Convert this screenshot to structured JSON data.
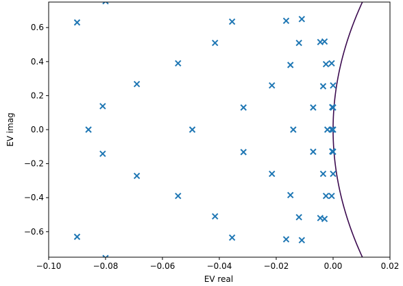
{
  "chart_data": {
    "type": "scatter",
    "title": "",
    "xlabel": "EV real",
    "ylabel": "EV imag",
    "xlim": [
      -0.1,
      0.02
    ],
    "ylim": [
      -0.75,
      0.75
    ],
    "grid": false,
    "legend": "none",
    "xticks": [
      {
        "value": -0.1,
        "label": "−0.10"
      },
      {
        "value": -0.08,
        "label": "−0.08"
      },
      {
        "value": -0.06,
        "label": "−0.06"
      },
      {
        "value": -0.04,
        "label": "−0.04"
      },
      {
        "value": -0.02,
        "label": "−0.02"
      },
      {
        "value": 0.0,
        "label": "0.00"
      },
      {
        "value": 0.02,
        "label": "0.02"
      }
    ],
    "yticks": [
      {
        "value": 0.6,
        "label": "0.6"
      },
      {
        "value": 0.4,
        "label": "0.4"
      },
      {
        "value": 0.2,
        "label": "0.2"
      },
      {
        "value": 0.0,
        "label": "0.0"
      },
      {
        "value": -0.2,
        "label": "−0.2"
      },
      {
        "value": -0.4,
        "label": "−0.4"
      },
      {
        "value": -0.6,
        "label": "−0.6"
      }
    ],
    "marker_color": "#1f77b4",
    "curve_color": "#3b0a4f",
    "points": [
      [
        -0.08,
        0.755
      ],
      [
        -0.08,
        -0.755
      ],
      [
        -0.09,
        0.63
      ],
      [
        -0.09,
        -0.63
      ],
      [
        -0.0355,
        0.635
      ],
      [
        -0.0355,
        -0.635
      ],
      [
        -0.0165,
        0.64
      ],
      [
        -0.0165,
        -0.645
      ],
      [
        -0.011,
        0.65
      ],
      [
        -0.011,
        -0.65
      ],
      [
        -0.0415,
        0.51
      ],
      [
        -0.0415,
        -0.51
      ],
      [
        -0.012,
        0.51
      ],
      [
        -0.012,
        -0.515
      ],
      [
        -0.0045,
        0.515
      ],
      [
        -0.0045,
        -0.52
      ],
      [
        -0.003,
        0.518
      ],
      [
        -0.003,
        -0.525
      ],
      [
        -0.0545,
        0.39
      ],
      [
        -0.0545,
        -0.39
      ],
      [
        -0.015,
        0.38
      ],
      [
        -0.015,
        -0.385
      ],
      [
        -0.0025,
        0.385
      ],
      [
        -0.0025,
        -0.39
      ],
      [
        -0.0005,
        0.39
      ],
      [
        -0.0005,
        -0.39
      ],
      [
        -0.069,
        0.268
      ],
      [
        -0.069,
        -0.272
      ],
      [
        -0.0215,
        0.26
      ],
      [
        -0.0215,
        -0.26
      ],
      [
        -0.0035,
        0.255
      ],
      [
        -0.0035,
        -0.26
      ],
      [
        0.0,
        0.26
      ],
      [
        0.0,
        -0.26
      ],
      [
        -0.081,
        0.138
      ],
      [
        -0.081,
        -0.142
      ],
      [
        -0.0315,
        0.13
      ],
      [
        -0.0315,
        -0.132
      ],
      [
        -0.007,
        0.13
      ],
      [
        -0.007,
        -0.13
      ],
      [
        0.0,
        0.13
      ],
      [
        0.0,
        -0.13
      ],
      [
        -0.0003,
        0.132
      ],
      [
        -0.0003,
        -0.128
      ],
      [
        -0.086,
        0.0
      ],
      [
        -0.0495,
        0.0
      ],
      [
        -0.014,
        0.0
      ],
      [
        -0.002,
        0.0
      ],
      [
        -0.0005,
        0.0
      ],
      [
        0.0,
        0.0
      ]
    ],
    "curve": {
      "description_units": "x = 0.01 * (y / 0.75)^2 boundary",
      "x_vertex": 0.0,
      "x_at_limit": 0.0103
    }
  }
}
